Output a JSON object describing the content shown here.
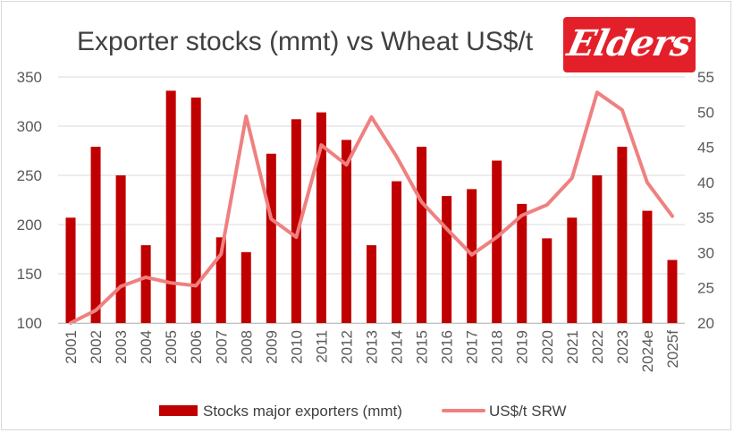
{
  "title": "Exporter stocks (mmt) vs Wheat US$/t",
  "logo_text": "Elders",
  "chart_data": {
    "type": "bar+line",
    "title": "Exporter stocks (mmt) vs Wheat US$/t",
    "categories": [
      "2001",
      "2002",
      "2003",
      "2004",
      "2005",
      "2006",
      "2007",
      "2008",
      "2009",
      "2010",
      "2011",
      "2012",
      "2013",
      "2014",
      "2015",
      "2016",
      "2017",
      "2018",
      "2019",
      "2020",
      "2021",
      "2022",
      "2023",
      "2024e",
      "2025f"
    ],
    "series": [
      {
        "name": "Stocks major exporters (mmt)",
        "type": "bar",
        "axis": "left",
        "color": "#c00000",
        "values": [
          207,
          279,
          250,
          179,
          336,
          329,
          187,
          172,
          272,
          307,
          314,
          286,
          179,
          244,
          279,
          229,
          236,
          265,
          221,
          186,
          207,
          250,
          279,
          214,
          164
        ]
      },
      {
        "name": "US$/t SRW",
        "type": "line",
        "axis": "right",
        "color": "#f08080",
        "values": [
          20.0,
          21.8,
          25.2,
          26.5,
          25.7,
          25.3,
          29.8,
          49.4,
          34.8,
          32.2,
          45.3,
          42.5,
          49.3,
          43.7,
          37.2,
          33.4,
          29.7,
          32.2,
          35.3,
          36.8,
          40.6,
          52.8,
          50.3,
          40.0,
          35.2
        ]
      }
    ],
    "ylim_left": [
      100,
      350
    ],
    "yticks_left": [
      "100",
      "150",
      "200",
      "250",
      "300",
      "350"
    ],
    "ylim_right": [
      20,
      55
    ],
    "yticks_right": [
      "20",
      "25",
      "30",
      "35",
      "40",
      "45",
      "50",
      "55"
    ],
    "grid": true,
    "legend": "bottom"
  }
}
